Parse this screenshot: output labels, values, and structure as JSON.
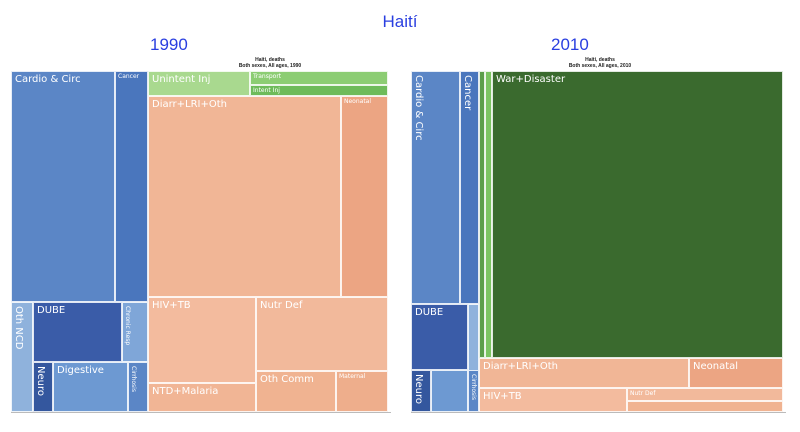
{
  "title": "Haití",
  "chart_data": [
    {
      "type": "treemap",
      "year_label": "1990",
      "panel_title": "Haiti, deaths",
      "panel_subtitle": "Both sexes, All ages, 1990",
      "cells": [
        {
          "label": "Cardio & Circ",
          "color": "#5b86c6"
        },
        {
          "label": "Cancer",
          "color": "#4a76bd"
        },
        {
          "label": "Oth NCD",
          "color": "#8fb2dc"
        },
        {
          "label": "DUBE",
          "color": "#3a5ca8"
        },
        {
          "label": "Chronic Resp",
          "color": "#7fa6d8"
        },
        {
          "label": "Neuro",
          "color": "#34579e"
        },
        {
          "label": "Digestive",
          "color": "#6d99d2"
        },
        {
          "label": "Cirrhosis",
          "color": "#5b86c6"
        },
        {
          "label": "Unintent Inj",
          "color": "#a9d98f"
        },
        {
          "label": "Transport",
          "color": "#8ccd73"
        },
        {
          "label": "Intent Inj",
          "color": "#6ebb5a"
        },
        {
          "label": "Diarr+LRI+Oth",
          "color": "#f1b696"
        },
        {
          "label": "Neonatal",
          "color": "#eca583"
        },
        {
          "label": "HIV+TB",
          "color": "#f3bb9e"
        },
        {
          "label": "Nutr Def",
          "color": "#f2b99b"
        },
        {
          "label": "NTD+Malaria",
          "color": "#f1b595"
        },
        {
          "label": "Oth Comm",
          "color": "#f0b391"
        },
        {
          "label": "Maternal",
          "color": "#eeae8c"
        }
      ]
    },
    {
      "type": "treemap",
      "year_label": "2010",
      "panel_title": "Haiti, deaths",
      "panel_subtitle": "Both sexes, All ages, 2010",
      "cells": [
        {
          "label": "Cardio & Circ",
          "color": "#5b86c6"
        },
        {
          "label": "Cancer",
          "color": "#4a76bd"
        },
        {
          "label": "",
          "color": "#5c9e4a"
        },
        {
          "label": "",
          "color": "#7cc462"
        },
        {
          "label": "War+Disaster",
          "color": "#3a6a2e"
        },
        {
          "label": "DUBE",
          "color": "#3a5ca8"
        },
        {
          "label": "",
          "color": "#8fb2dc"
        },
        {
          "label": "Neuro",
          "color": "#34579e"
        },
        {
          "label": "",
          "color": "#6d99d2"
        },
        {
          "label": "Cirrhosis",
          "color": "#5b86c6"
        },
        {
          "label": "Diarr+LRI+Oth",
          "color": "#f1b696"
        },
        {
          "label": "Neonatal",
          "color": "#eca583"
        },
        {
          "label": "HIV+TB",
          "color": "#f3bb9e"
        },
        {
          "label": "Nutr Def",
          "color": "#f2b99b"
        },
        {
          "label": "",
          "color": "#f0b391"
        }
      ]
    }
  ]
}
